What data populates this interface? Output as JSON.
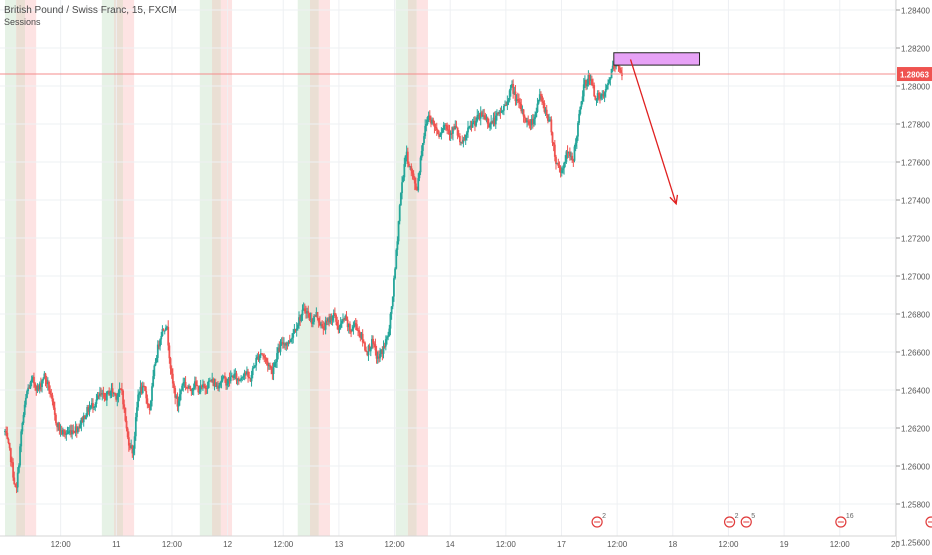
{
  "header": {
    "symbol_title": "British Pound / Swiss Franc, 15, FXCM",
    "indicator_label": "Sessions"
  },
  "colors": {
    "up_candle": "#26a69a",
    "down_candle": "#ef5350",
    "grid": "#eef0f3",
    "price_line": "#f48c8c",
    "price_tag_bg": "#ef5350",
    "zone_fill": "#e7a2f6",
    "zone_border": "#222222",
    "arrow": "#e02020",
    "session_green": "#e6f2e6",
    "session_brown": "#eadfd4",
    "session_red": "#fde3e3",
    "event_marker": "#e03b3b"
  },
  "chart_data": {
    "type": "candlestick",
    "title": "British Pound / Swiss Franc, 15, FXCM",
    "indicator": "Sessions",
    "last_price": "1.28063",
    "ylim": [
      1.2555,
      1.285
    ],
    "y_ticks": [
      "1.28400",
      "1.28200",
      "1.28000",
      "1.27800",
      "1.27600",
      "1.27400",
      "1.27200",
      "1.27000",
      "1.26800",
      "1.26600",
      "1.26400",
      "1.26200",
      "1.26000",
      "1.25800",
      "1.25600"
    ],
    "x_ticks": [
      {
        "label": "12:00",
        "day": 10.5
      },
      {
        "label": "11",
        "day": 11.0
      },
      {
        "label": "12:00",
        "day": 11.5
      },
      {
        "label": "12",
        "day": 12.0
      },
      {
        "label": "12:00",
        "day": 12.5
      },
      {
        "label": "13",
        "day": 13.0
      },
      {
        "label": "12:00",
        "day": 13.5
      },
      {
        "label": "14",
        "day": 14.0
      },
      {
        "label": "12:00",
        "day": 14.5
      },
      {
        "label": "17",
        "day": 15.0
      },
      {
        "label": "12:00",
        "day": 15.5
      },
      {
        "label": "18",
        "day": 16.0
      },
      {
        "label": "12:00",
        "day": 16.5
      },
      {
        "label": "19",
        "day": 17.0
      },
      {
        "label": "12:00",
        "day": 17.5
      },
      {
        "label": "20",
        "day": 18.0
      }
    ],
    "price_path": [
      [
        10.0,
        1.2618
      ],
      [
        10.05,
        1.2605
      ],
      [
        10.1,
        1.2585
      ],
      [
        10.15,
        1.262
      ],
      [
        10.2,
        1.264
      ],
      [
        10.25,
        1.2645
      ],
      [
        10.3,
        1.264
      ],
      [
        10.35,
        1.2648
      ],
      [
        10.4,
        1.264
      ],
      [
        10.45,
        1.2625
      ],
      [
        10.5,
        1.2618
      ],
      [
        10.55,
        1.2617
      ],
      [
        10.6,
        1.2619
      ],
      [
        10.65,
        1.262
      ],
      [
        10.7,
        1.2625
      ],
      [
        10.75,
        1.263
      ],
      [
        10.8,
        1.2633
      ],
      [
        10.85,
        1.2637
      ],
      [
        10.9,
        1.2636
      ],
      [
        10.95,
        1.264
      ],
      [
        11.0,
        1.2637
      ],
      [
        11.05,
        1.264
      ],
      [
        11.1,
        1.2615
      ],
      [
        11.15,
        1.2607
      ],
      [
        11.2,
        1.264
      ],
      [
        11.25,
        1.264
      ],
      [
        11.3,
        1.263
      ],
      [
        11.35,
        1.2655
      ],
      [
        11.4,
        1.267
      ],
      [
        11.45,
        1.2675
      ],
      [
        11.5,
        1.2645
      ],
      [
        11.55,
        1.2632
      ],
      [
        11.6,
        1.2645
      ],
      [
        11.65,
        1.264
      ],
      [
        11.7,
        1.2643
      ],
      [
        11.75,
        1.264
      ],
      [
        11.8,
        1.2642
      ],
      [
        11.85,
        1.2645
      ],
      [
        11.9,
        1.2642
      ],
      [
        11.95,
        1.2646
      ],
      [
        12.0,
        1.2644
      ],
      [
        12.05,
        1.2648
      ],
      [
        12.1,
        1.2645
      ],
      [
        12.15,
        1.265
      ],
      [
        12.2,
        1.2645
      ],
      [
        12.25,
        1.2655
      ],
      [
        12.3,
        1.266
      ],
      [
        12.35,
        1.2655
      ],
      [
        12.4,
        1.265
      ],
      [
        12.45,
        1.266
      ],
      [
        12.5,
        1.2665
      ],
      [
        12.55,
        1.2665
      ],
      [
        12.6,
        1.2672
      ],
      [
        12.65,
        1.2678
      ],
      [
        12.7,
        1.2683
      ],
      [
        12.75,
        1.2676
      ],
      [
        12.8,
        1.268
      ],
      [
        12.85,
        1.2672
      ],
      [
        12.9,
        1.2676
      ],
      [
        12.95,
        1.268
      ],
      [
        13.0,
        1.2672
      ],
      [
        13.05,
        1.2678
      ],
      [
        13.1,
        1.2671
      ],
      [
        13.15,
        1.2675
      ],
      [
        13.2,
        1.2668
      ],
      [
        13.25,
        1.266
      ],
      [
        13.3,
        1.2665
      ],
      [
        13.35,
        1.2656
      ],
      [
        13.4,
        1.2662
      ],
      [
        13.45,
        1.267
      ],
      [
        13.5,
        1.27
      ],
      [
        13.55,
        1.274
      ],
      [
        13.6,
        1.2765
      ],
      [
        13.65,
        1.2755
      ],
      [
        13.7,
        1.2745
      ],
      [
        13.75,
        1.277
      ],
      [
        13.8,
        1.2785
      ],
      [
        13.85,
        1.278
      ],
      [
        13.9,
        1.2775
      ],
      [
        13.95,
        1.278
      ],
      [
        14.0,
        1.2776
      ],
      [
        14.05,
        1.2778
      ],
      [
        14.1,
        1.2768
      ],
      [
        14.15,
        1.2775
      ],
      [
        14.2,
        1.278
      ],
      [
        14.25,
        1.2783
      ],
      [
        14.3,
        1.2785
      ],
      [
        14.35,
        1.278
      ],
      [
        14.4,
        1.2782
      ],
      [
        14.45,
        1.2786
      ],
      [
        14.5,
        1.279
      ],
      [
        14.55,
        1.28
      ],
      [
        14.6,
        1.2792
      ],
      [
        14.65,
        1.2786
      ],
      [
        14.7,
        1.278
      ],
      [
        14.75,
        1.2782
      ],
      [
        14.8,
        1.2795
      ],
      [
        14.85,
        1.2788
      ],
      [
        14.9,
        1.278
      ],
      [
        14.95,
        1.276
      ],
      [
        15.0,
        1.2755
      ],
      [
        15.05,
        1.2765
      ],
      [
        15.1,
        1.276
      ],
      [
        15.15,
        1.278
      ],
      [
        15.2,
        1.28
      ],
      [
        15.25,
        1.2805
      ],
      [
        15.3,
        1.2795
      ],
      [
        15.35,
        1.2793
      ],
      [
        15.4,
        1.2797
      ],
      [
        15.45,
        1.2808
      ],
      [
        15.5,
        1.2812
      ],
      [
        15.55,
        1.28063
      ]
    ],
    "sessions": [
      {
        "day": 10,
        "green": [
          10.0,
          10.1
        ],
        "brown": [
          10.1,
          10.18
        ],
        "red": [
          10.18,
          10.28
        ]
      },
      {
        "day": 11,
        "green": [
          10.87,
          10.98
        ],
        "brown": [
          10.98,
          11.06
        ],
        "red": [
          11.06,
          11.16
        ]
      },
      {
        "day": 12,
        "green": [
          11.75,
          11.86
        ],
        "brown": [
          11.86,
          11.94
        ],
        "red": [
          11.94,
          12.04
        ]
      },
      {
        "day": 13,
        "green": [
          12.63,
          12.74
        ],
        "brown": [
          12.74,
          12.82
        ],
        "red": [
          12.82,
          12.92
        ]
      },
      {
        "day": 14,
        "green": [
          13.51,
          13.62
        ],
        "brown": [
          13.62,
          13.7
        ],
        "red": [
          13.7,
          13.8
        ]
      }
    ],
    "zone": {
      "x0_day": 15.47,
      "x1_day": 16.24,
      "y_top": 1.28175,
      "y_bottom": 1.2811
    },
    "projection": {
      "from_day": 15.62,
      "from_price": 1.2814,
      "to_day": 16.03,
      "to_price": 1.2738
    },
    "event_markers": [
      {
        "day": 15.32,
        "count": "2"
      },
      {
        "day": 16.51,
        "count": "2"
      },
      {
        "day": 16.66,
        "count": "5"
      },
      {
        "day": 17.51,
        "count": "16"
      },
      {
        "day": 18.32,
        "count": ""
      }
    ]
  }
}
